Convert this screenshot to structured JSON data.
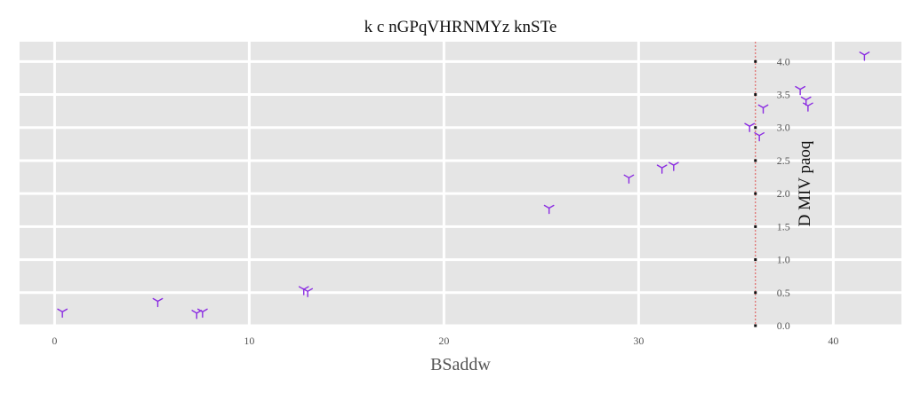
{
  "chart_data": {
    "type": "scatter",
    "title": "k c nGPqVHRNMYz knSTe",
    "xlabel": "BSaddw",
    "ylabel": "D MIV paoq",
    "xlim": [
      -1.8,
      43.5
    ],
    "ylim": [
      0.0,
      4.3
    ],
    "x_ticks": [
      0,
      10,
      20,
      30,
      40
    ],
    "x_tick_labels": [
      "0",
      "10",
      "20",
      "30",
      "40"
    ],
    "y_ticks": [
      0.0,
      0.5,
      1.0,
      1.5,
      2.0,
      2.5,
      3.0,
      3.5,
      4.0
    ],
    "y_tick_labels": [
      "0.0",
      "0.5",
      "1.0",
      "1.5",
      "2.0",
      "2.5",
      "3.0",
      "3.5",
      "4.0"
    ],
    "y_axis_position": 36,
    "vline_x": 36,
    "grid": true,
    "marker": "tri_down",
    "colors": {
      "points": "#8a2be2",
      "vline": "#e05050",
      "panel": "#e5e5e5",
      "grid": "#ffffff",
      "text": "#333333",
      "tick_label": "#555555"
    },
    "points": [
      {
        "x": 0.4,
        "y": 0.21
      },
      {
        "x": 5.3,
        "y": 0.37
      },
      {
        "x": 7.3,
        "y": 0.19
      },
      {
        "x": 7.6,
        "y": 0.21
      },
      {
        "x": 12.8,
        "y": 0.55
      },
      {
        "x": 13.0,
        "y": 0.52
      },
      {
        "x": 25.4,
        "y": 1.78
      },
      {
        "x": 29.5,
        "y": 2.24
      },
      {
        "x": 31.2,
        "y": 2.39
      },
      {
        "x": 31.8,
        "y": 2.43
      },
      {
        "x": 35.7,
        "y": 3.02
      },
      {
        "x": 36.2,
        "y": 2.88
      },
      {
        "x": 36.4,
        "y": 3.3
      },
      {
        "x": 38.3,
        "y": 3.58
      },
      {
        "x": 38.6,
        "y": 3.42
      },
      {
        "x": 38.7,
        "y": 3.33
      },
      {
        "x": 41.6,
        "y": 4.1
      }
    ]
  }
}
